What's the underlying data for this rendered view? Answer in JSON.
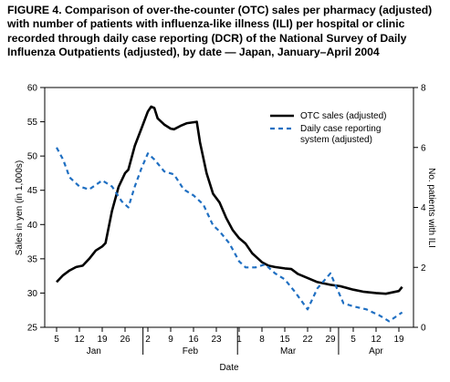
{
  "chart_data": {
    "type": "line",
    "title": "FIGURE 4. Comparison of over-the-counter (OTC) sales per pharmacy (adjusted) with number of patients with influenza-like illness (ILI) per hospital or clinic recorded through daily case reporting (DCR) of the National Survey of Daily Influenza Outpatients (adjusted), by date — Japan, January–April 2004",
    "xlabel": "Date",
    "ylabel_left": "Sales in yen (in 1,000s)",
    "ylabel_right": "No. patients with ILI",
    "ylim_left": [
      25,
      60
    ],
    "ylim_right": [
      0,
      8
    ],
    "y_ticks_left": [
      "25",
      "30",
      "35",
      "40",
      "45",
      "50",
      "55",
      "60"
    ],
    "y_ticks_right": [
      "0",
      "2",
      "4",
      "6",
      "8"
    ],
    "months": [
      {
        "name": "Jan",
        "start": "2004-01-05",
        "end": "2004-01-31",
        "ticks": [
          "5",
          "12",
          "19",
          "26"
        ]
      },
      {
        "name": "Feb",
        "start": "2004-02-01",
        "end": "2004-02-29",
        "ticks": [
          "2",
          "9",
          "16",
          "23"
        ]
      },
      {
        "name": "Mar",
        "start": "2004-03-01",
        "end": "2004-03-31",
        "ticks": [
          "1",
          "8",
          "15",
          "22",
          "29"
        ]
      },
      {
        "name": "Apr",
        "start": "2004-04-01",
        "end": "2004-04-21",
        "ticks": [
          "5",
          "12",
          "19"
        ]
      }
    ],
    "x_tick_dates": [
      "2004-01-05",
      "2004-01-12",
      "2004-01-19",
      "2004-01-26",
      "2004-02-02",
      "2004-02-09",
      "2004-02-16",
      "2004-02-23",
      "2004-03-01",
      "2004-03-08",
      "2004-03-15",
      "2004-03-22",
      "2004-03-29",
      "2004-04-05",
      "2004-04-12",
      "2004-04-19"
    ],
    "legend_position": "top-right",
    "series": [
      {
        "name": "OTC sales (adjusted)",
        "axis": "left",
        "style": "solid",
        "color": "#000000",
        "points": [
          [
            "2004-01-05",
            31.6
          ],
          [
            "2004-01-07",
            32.6
          ],
          [
            "2004-01-09",
            33.3
          ],
          [
            "2004-01-11",
            33.8
          ],
          [
            "2004-01-13",
            34.0
          ],
          [
            "2004-01-15",
            35.0
          ],
          [
            "2004-01-17",
            36.2
          ],
          [
            "2004-01-19",
            36.8
          ],
          [
            "2004-01-20",
            37.3
          ],
          [
            "2004-01-22",
            42.0
          ],
          [
            "2004-01-24",
            45.5
          ],
          [
            "2004-01-26",
            47.5
          ],
          [
            "2004-01-27",
            48.0
          ],
          [
            "2004-01-29",
            51.5
          ],
          [
            "2004-01-31",
            54.0
          ],
          [
            "2004-02-02",
            56.5
          ],
          [
            "2004-02-03",
            57.2
          ],
          [
            "2004-02-04",
            57.0
          ],
          [
            "2004-02-05",
            55.5
          ],
          [
            "2004-02-07",
            54.6
          ],
          [
            "2004-02-09",
            54.0
          ],
          [
            "2004-02-10",
            53.9
          ],
          [
            "2004-02-12",
            54.4
          ],
          [
            "2004-02-14",
            54.8
          ],
          [
            "2004-02-17",
            55.0
          ],
          [
            "2004-02-18",
            52.0
          ],
          [
            "2004-02-20",
            47.5
          ],
          [
            "2004-02-22",
            44.5
          ],
          [
            "2004-02-24",
            43.2
          ],
          [
            "2004-02-26",
            41.0
          ],
          [
            "2004-02-28",
            39.2
          ],
          [
            "2004-03-01",
            38.0
          ],
          [
            "2004-03-03",
            37.2
          ],
          [
            "2004-03-05",
            35.8
          ],
          [
            "2004-03-08",
            34.5
          ],
          [
            "2004-03-10",
            34.0
          ],
          [
            "2004-03-12",
            33.8
          ],
          [
            "2004-03-15",
            33.6
          ],
          [
            "2004-03-17",
            33.5
          ],
          [
            "2004-03-19",
            32.8
          ],
          [
            "2004-03-22",
            32.2
          ],
          [
            "2004-03-25",
            31.6
          ],
          [
            "2004-03-29",
            31.2
          ],
          [
            "2004-04-01",
            31.0
          ],
          [
            "2004-04-05",
            30.5
          ],
          [
            "2004-04-08",
            30.2
          ],
          [
            "2004-04-12",
            30.0
          ],
          [
            "2004-04-15",
            29.9
          ],
          [
            "2004-04-19",
            30.3
          ],
          [
            "2004-04-20",
            30.9
          ]
        ]
      },
      {
        "name": "Daily case reporting system (adjusted)",
        "axis": "right",
        "style": "dashed",
        "color": "#1f6fc2",
        "points": [
          [
            "2004-01-05",
            6.0
          ],
          [
            "2004-01-07",
            5.6
          ],
          [
            "2004-01-09",
            5.0
          ],
          [
            "2004-01-12",
            4.7
          ],
          [
            "2004-01-15",
            4.6
          ],
          [
            "2004-01-19",
            4.9
          ],
          [
            "2004-01-22",
            4.7
          ],
          [
            "2004-01-25",
            4.2
          ],
          [
            "2004-01-27",
            4.0
          ],
          [
            "2004-01-29",
            4.7
          ],
          [
            "2004-01-31",
            5.3
          ],
          [
            "2004-02-02",
            5.8
          ],
          [
            "2004-02-04",
            5.6
          ],
          [
            "2004-02-07",
            5.2
          ],
          [
            "2004-02-10",
            5.1
          ],
          [
            "2004-02-13",
            4.6
          ],
          [
            "2004-02-16",
            4.4
          ],
          [
            "2004-02-19",
            4.1
          ],
          [
            "2004-02-22",
            3.4
          ],
          [
            "2004-02-24",
            3.2
          ],
          [
            "2004-02-27",
            2.8
          ],
          [
            "2004-03-01",
            2.2
          ],
          [
            "2004-03-03",
            2.0
          ],
          [
            "2004-03-06",
            2.0
          ],
          [
            "2004-03-09",
            2.1
          ],
          [
            "2004-03-12",
            1.8
          ],
          [
            "2004-03-15",
            1.6
          ],
          [
            "2004-03-18",
            1.2
          ],
          [
            "2004-03-22",
            0.6
          ],
          [
            "2004-03-25",
            1.3
          ],
          [
            "2004-03-29",
            1.8
          ],
          [
            "2004-03-31",
            1.3
          ],
          [
            "2004-04-02",
            0.8
          ],
          [
            "2004-04-05",
            0.7
          ],
          [
            "2004-04-09",
            0.6
          ],
          [
            "2004-04-13",
            0.4
          ],
          [
            "2004-04-16",
            0.2
          ],
          [
            "2004-04-20",
            0.5
          ]
        ]
      }
    ]
  }
}
